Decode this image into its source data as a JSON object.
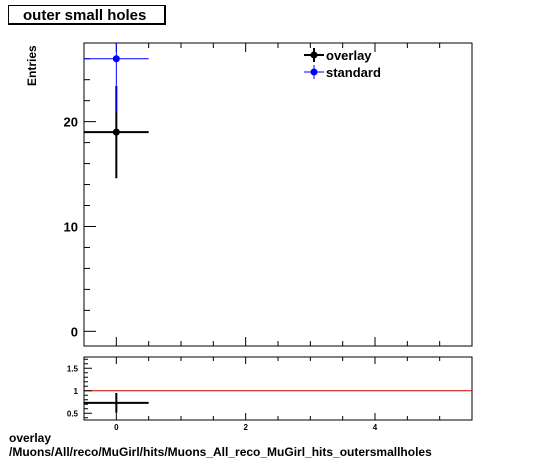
{
  "title": "outer small holes",
  "footer": {
    "line1": "overlay",
    "line2": "/Muons/All/reco/MuGirl/hits/Muons_All_reco_MuGirl_hits_outersmallholes"
  },
  "colors": {
    "overlay": "#000000",
    "standard": "#0000ff",
    "ratio_line": "#cc0000"
  },
  "chart_data": [
    {
      "type": "scatter",
      "title": "outer small holes",
      "xlabel": "",
      "ylabel": "Entries",
      "xlim": [
        -0.5,
        5.5
      ],
      "ylim": [
        -1.4,
        27.5
      ],
      "y_ticks": [
        0,
        10,
        20
      ],
      "x_ticks": [
        0,
        2,
        4
      ],
      "grid": false,
      "legend_position": "top-right",
      "series": [
        {
          "name": "overlay",
          "color": "#000000",
          "points": [
            {
              "x": 0,
              "y": 19,
              "xerr": 0.5,
              "yerr": 4.4
            }
          ]
        },
        {
          "name": "standard",
          "color": "#0000ff",
          "points": [
            {
              "x": 0,
              "y": 26,
              "xerr": 0.5,
              "yerr": 5.1
            }
          ]
        }
      ]
    },
    {
      "type": "scatter",
      "title": "",
      "ylabel": "",
      "xlim": [
        -0.5,
        5.5
      ],
      "ylim": [
        0.35,
        1.75
      ],
      "y_ticks": [
        "0.5",
        "1",
        "1.5"
      ],
      "x_ticks": [
        "0",
        "2",
        "4"
      ],
      "reference_line": 1,
      "series": [
        {
          "name": "",
          "color": "#000000",
          "points": [
            {
              "x": 0,
              "y": 0.73,
              "xerr": 0.5,
              "yerr": 0.22
            }
          ]
        }
      ]
    }
  ]
}
